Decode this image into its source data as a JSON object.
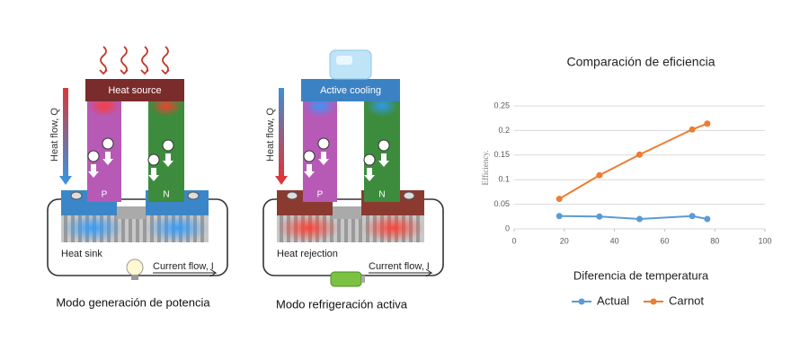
{
  "diagrams": [
    {
      "heat_label": "Heat source",
      "flow_label": "Heat flow, Q",
      "p_label": "P",
      "n_label": "N",
      "bottom_label": "Heat sink",
      "current_label": "Current flow, I",
      "caption": "Modo generación de potencia"
    },
    {
      "heat_label": "Active cooling",
      "flow_label": "Heat flow, Q",
      "p_label": "P",
      "n_label": "N",
      "bottom_label": "Heat rejection",
      "current_label": "Current flow, I",
      "caption": "Modo refrigeración activa"
    }
  ],
  "chart_data": {
    "type": "line",
    "title": "Comparación de eficiencia",
    "x_label": "Diferencia de temperatura",
    "y_label": "Efficiency.",
    "x": [
      18,
      34,
      50,
      71,
      77
    ],
    "series": [
      {
        "name": "Actual",
        "color": "#5b9bd5",
        "values": [
          0.026,
          0.025,
          0.02,
          0.026,
          0.02
        ]
      },
      {
        "name": "Carnot",
        "color": "#ed7d31",
        "values": [
          0.061,
          0.109,
          0.151,
          0.202,
          0.214
        ]
      }
    ],
    "xlim": [
      0,
      100
    ],
    "xticks": [
      0,
      20,
      40,
      60,
      80,
      100
    ],
    "ylim": [
      0,
      0.25
    ],
    "yticks": [
      0,
      0.05,
      0.1,
      0.15,
      0.2,
      0.25
    ],
    "grid": true,
    "legend": "bottom"
  }
}
